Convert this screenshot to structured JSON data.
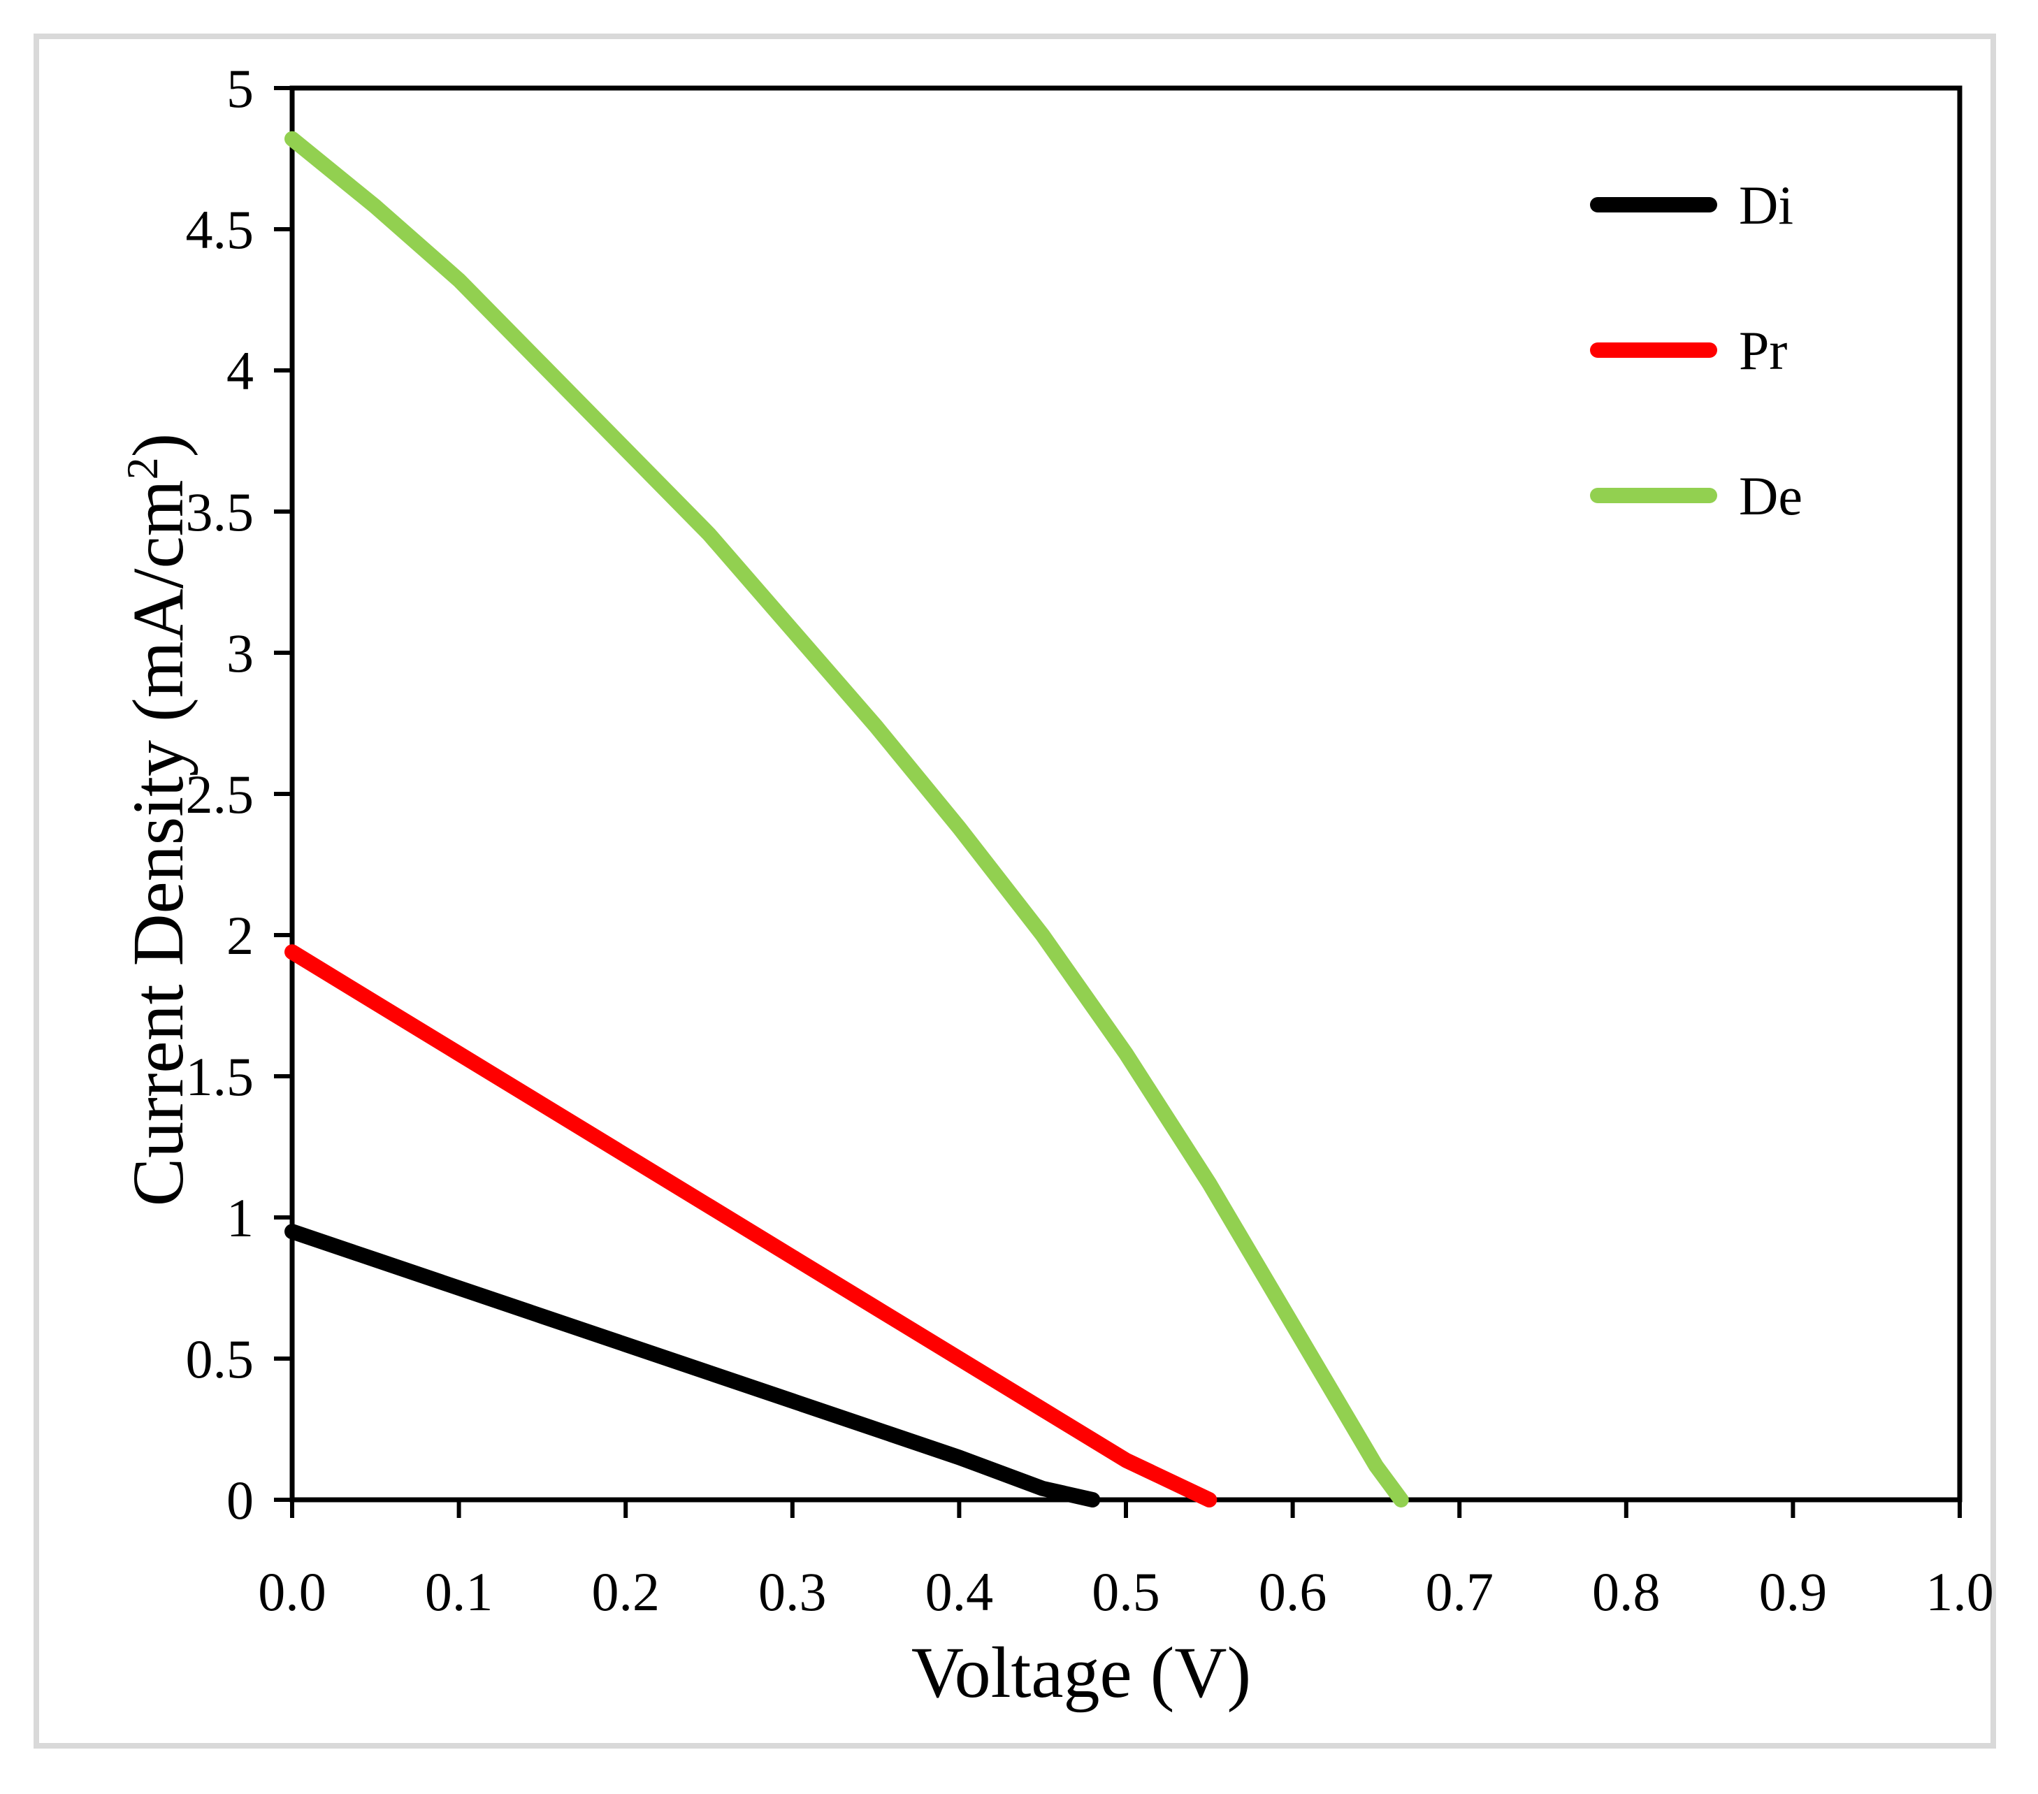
{
  "chart_data": {
    "type": "line",
    "title": "",
    "xlabel": "Voltage (V)",
    "ylabel": "Current Density (mA/cm",
    "ylabel_sup": "2",
    "ylabel_close": ")",
    "xlim": [
      0,
      1.0
    ],
    "ylim": [
      0,
      5
    ],
    "xticks": [
      "0.0",
      "0.1",
      "0.2",
      "0.3",
      "0.4",
      "0.5",
      "0.6",
      "0.7",
      "0.8",
      "0.9",
      "1.0"
    ],
    "yticks": [
      "0",
      "0.5",
      "1",
      "1.5",
      "2",
      "2.5",
      "3",
      "3.5",
      "4",
      "4.5",
      "5"
    ],
    "grid": false,
    "legend_position": "top-right",
    "series": [
      {
        "name": "Di",
        "color": "#000000",
        "x": [
          0.0,
          0.05,
          0.1,
          0.15,
          0.2,
          0.25,
          0.3,
          0.35,
          0.4,
          0.45,
          0.48
        ],
        "y": [
          0.95,
          0.85,
          0.75,
          0.65,
          0.55,
          0.45,
          0.35,
          0.25,
          0.15,
          0.04,
          0.0
        ]
      },
      {
        "name": "Pr",
        "color": "#ff0000",
        "x": [
          0.0,
          0.05,
          0.1,
          0.15,
          0.2,
          0.25,
          0.3,
          0.35,
          0.4,
          0.45,
          0.5,
          0.55
        ],
        "y": [
          1.94,
          1.76,
          1.58,
          1.4,
          1.22,
          1.04,
          0.86,
          0.68,
          0.5,
          0.32,
          0.14,
          0.0
        ]
      },
      {
        "name": "De",
        "color": "#92d050",
        "x": [
          0.0,
          0.05,
          0.1,
          0.15,
          0.2,
          0.25,
          0.3,
          0.35,
          0.4,
          0.45,
          0.5,
          0.55,
          0.6,
          0.63,
          0.65,
          0.665
        ],
        "y": [
          4.82,
          4.58,
          4.32,
          4.02,
          3.72,
          3.42,
          3.08,
          2.74,
          2.38,
          2.0,
          1.58,
          1.12,
          0.62,
          0.32,
          0.12,
          0.0
        ]
      }
    ]
  }
}
